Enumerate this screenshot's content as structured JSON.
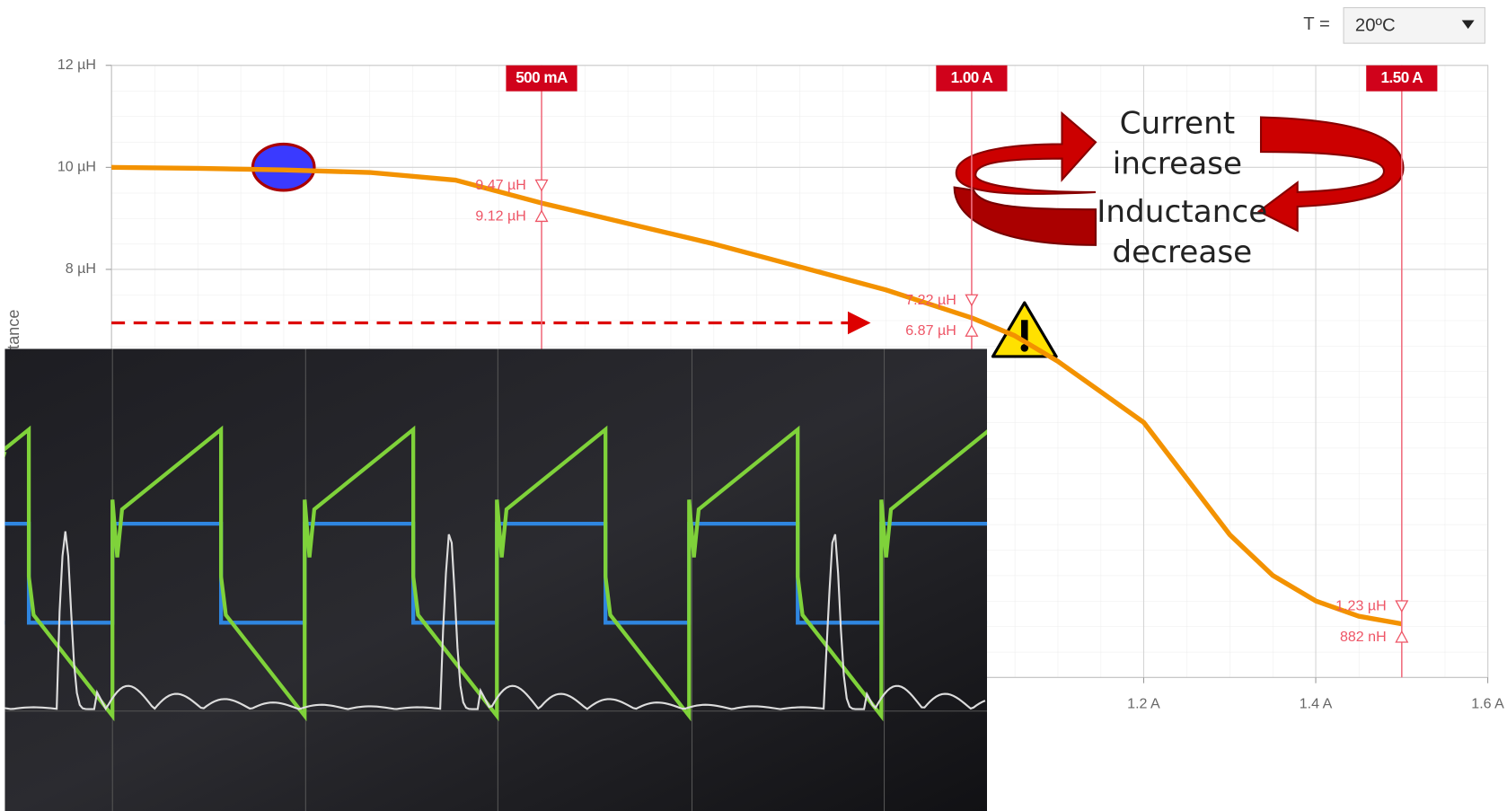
{
  "controls": {
    "temperature_label": "T =",
    "temperature_value": "20ºC"
  },
  "chart_data": {
    "type": "line",
    "ylabel": "Inductance",
    "color": "#f39200",
    "grid": true,
    "x": [
      0,
      0.1,
      0.2,
      0.3,
      0.4,
      0.5,
      0.6,
      0.7,
      0.8,
      0.9,
      1.0,
      1.05,
      1.1,
      1.15,
      1.2,
      1.25,
      1.3,
      1.35,
      1.4,
      1.45,
      1.5
    ],
    "values": [
      10,
      9.98,
      9.95,
      9.9,
      9.75,
      9.3,
      8.9,
      8.5,
      8.05,
      7.6,
      7.05,
      6.7,
      6.2,
      5.6,
      5.0,
      3.9,
      2.8,
      2.0,
      1.5,
      1.2,
      1.05
    ],
    "xlim": [
      0,
      1.6
    ],
    "ylim": [
      0,
      12
    ],
    "xticks": [
      {
        "value": 1.2,
        "label": "1.2 A"
      },
      {
        "value": 1.4,
        "label": "1.4 A"
      },
      {
        "value": 1.6,
        "label": "1.6 A"
      }
    ],
    "yticks": [
      {
        "value": 8,
        "label": "8 µH"
      },
      {
        "value": 10,
        "label": "10 µH"
      },
      {
        "value": 12,
        "label": "12 µH"
      }
    ],
    "cursors": [
      {
        "x": 0.5,
        "label": "500 mA",
        "readings": [
          "9.47 µH",
          "9.12 µH"
        ]
      },
      {
        "x": 1.0,
        "label": "1.00 A",
        "readings": [
          "7.22 µH",
          "6.87 µH"
        ]
      },
      {
        "x": 1.5,
        "label": "1.50 A",
        "readings": [
          "1.23 µH",
          "882 nH"
        ]
      }
    ],
    "annotations": [
      {
        "lines": [
          "Current",
          "increase"
        ]
      },
      {
        "lines": [
          "Inductance",
          "decrease"
        ]
      }
    ]
  }
}
